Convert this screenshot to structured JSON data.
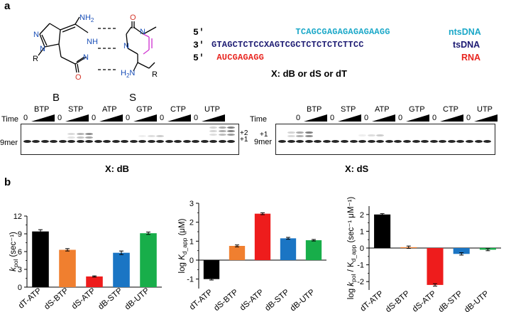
{
  "panel_a": {
    "label": "a",
    "structure_B_label": "B",
    "structure_S_label": "S",
    "atoms": {
      "B_nh2": "NH",
      "B_nh2_sub": "2",
      "B_n1": "N",
      "B_n2": "N",
      "B_n3": "N",
      "B_nh": "NH",
      "B_o": "O",
      "B_r": "R",
      "S_o": "O",
      "S_n1": "N",
      "S_n2": "N",
      "S_nh2": "H",
      "S_nh2_n": "N",
      "S_nh2_sub": "2",
      "S_r": "R"
    },
    "strands": [
      {
        "prime": "5′",
        "seq": "                TCAGCGAGAGAGAGAAGG",
        "name": "ntsDNA",
        "color": "#1ba8c8"
      },
      {
        "prime": "3′",
        "seq": "GTAGCTCTCCXAGTCGCTCTCTCTCTTCC",
        "name": "tsDNA",
        "color": "#1c1a72"
      },
      {
        "prime": "5′",
        "seq": " AUCGAGAGG",
        "name": "RNA",
        "color": "#e8251f"
      }
    ],
    "x_note": "X: dB or dS or dT",
    "gels": [
      {
        "caption": "X: dB",
        "time_label": "Time",
        "marker_label": "9mer",
        "extra_labels": [
          "+2",
          "+1"
        ],
        "groups": [
          "BTP",
          "STP",
          "ATP",
          "GTP",
          "CTP",
          "UTP"
        ],
        "zero_label": "0"
      },
      {
        "caption": "X: dS",
        "time_label": "Time",
        "marker_label": "9mer",
        "extra_labels": [
          "+1"
        ],
        "groups": [
          "BTP",
          "STP",
          "ATP",
          "GTP",
          "CTP",
          "UTP"
        ],
        "zero_label": "0"
      }
    ]
  },
  "panel_b": {
    "label": "b",
    "colors": [
      "#000000",
      "#f07f2f",
      "#ee1c1c",
      "#1a75c4",
      "#18ae4a"
    ]
  },
  "chart_data": [
    {
      "type": "bar",
      "categories": [
        "dT-ATP",
        "dS-BTP",
        "dS-ATP",
        "dB-STP",
        "dB-UTP"
      ],
      "values": [
        9.4,
        6.3,
        1.8,
        5.8,
        9.1
      ],
      "errors": [
        0.3,
        0.2,
        0.1,
        0.3,
        0.2
      ],
      "ylabel_main": "k",
      "ylabel_sub": "pol",
      "ylabel_rest": " (sec⁻¹)",
      "ylim": [
        0,
        12
      ],
      "yticks": [
        "0",
        "3",
        "6",
        "9",
        "12"
      ],
      "ytick_values": [
        0,
        3,
        6,
        9,
        12
      ],
      "grid": false
    },
    {
      "type": "bar",
      "categories": [
        "dT-ATP",
        "dS-BTP",
        "dS-ATP",
        "dB-STP",
        "dB-UTP"
      ],
      "values": [
        -1.0,
        0.75,
        2.45,
        1.15,
        1.05
      ],
      "errors": [
        0.05,
        0.05,
        0.05,
        0.05,
        0.04
      ],
      "ylabel_main": "log K",
      "ylabel_sub": "d_app",
      "ylabel_rest": " (μM)",
      "ylim": [
        -1.5,
        3
      ],
      "yticks": [
        "-1",
        "0",
        "1",
        "2",
        "3"
      ],
      "ytick_values": [
        -1,
        0,
        1,
        2,
        3
      ],
      "grid": false
    },
    {
      "type": "bar",
      "categories": [
        "dT-ATP",
        "dS-BTP",
        "dS-ATP",
        "dB-STP",
        "dB-UTP"
      ],
      "values": [
        2.0,
        0.05,
        -2.2,
        -0.35,
        -0.1
      ],
      "errors": [
        0.05,
        0.07,
        0.07,
        0.07,
        0.06
      ],
      "ylabel_main": "log k",
      "ylabel_sub": "pol",
      "ylabel_rest": " / K",
      "ylabel_sub2": "d_app",
      "ylabel_rest2": " (sec⁻¹ μM⁻¹)",
      "ylim": [
        -2.5,
        2.5
      ],
      "yticks": [
        "-2",
        "-1",
        "0",
        "1",
        "2"
      ],
      "ytick_values": [
        -2,
        -1,
        0,
        1,
        2
      ],
      "grid": false
    }
  ]
}
